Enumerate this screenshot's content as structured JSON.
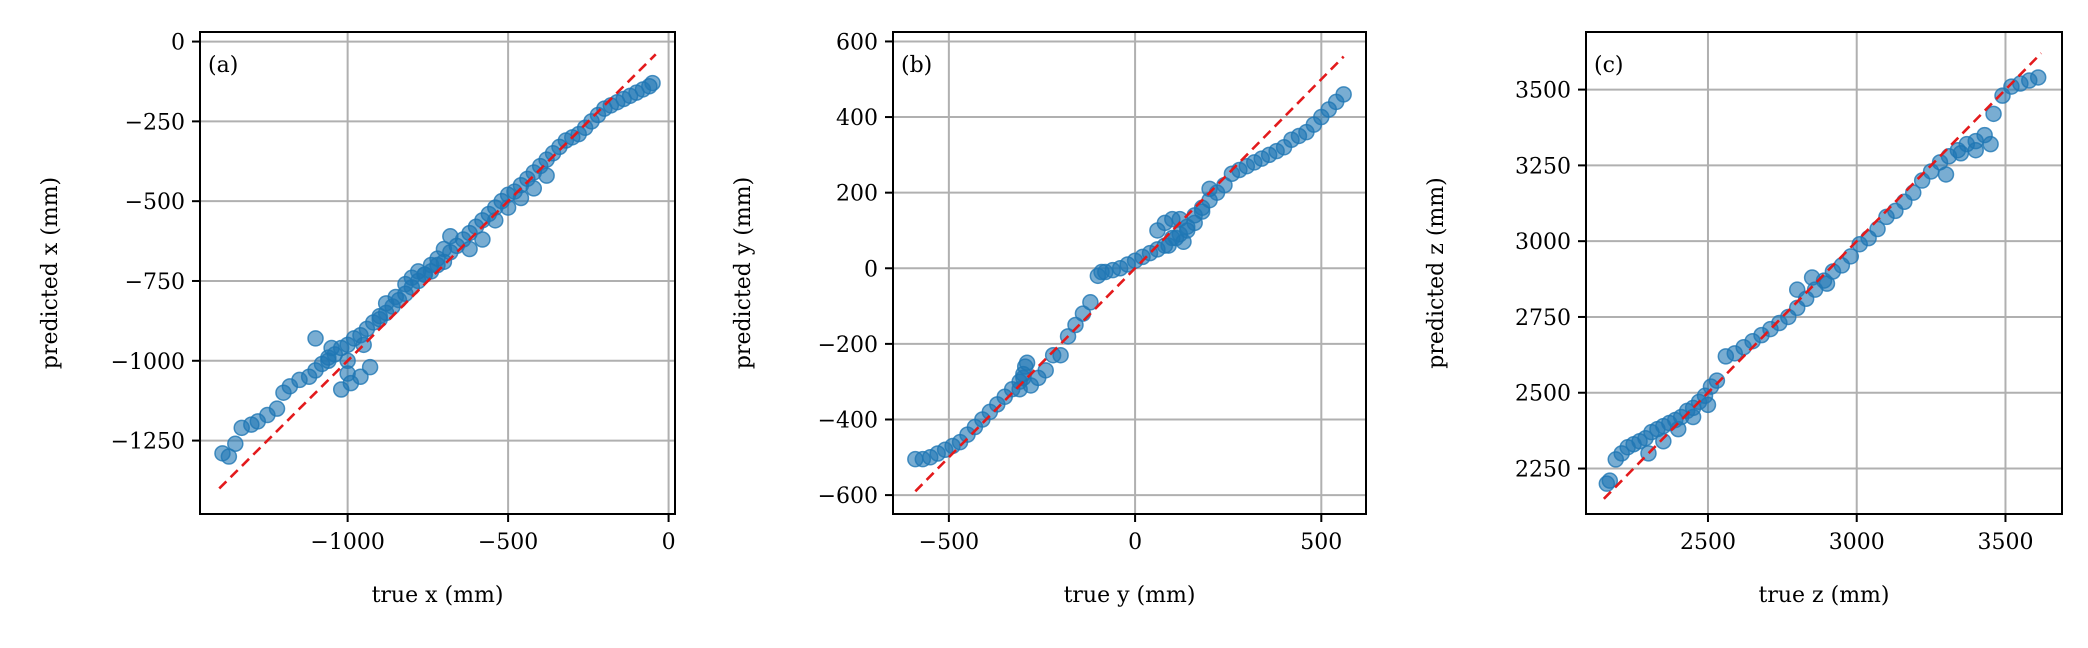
{
  "chart_data": [
    {
      "type": "scatter",
      "panel_label": "(a)",
      "xlabel": "true x (mm)",
      "ylabel": "predicted x (mm)",
      "xlim": [
        -1460,
        20
      ],
      "ylim": [
        -1480,
        30
      ],
      "xticks": [
        -1000,
        -500,
        0
      ],
      "xtick_labels": [
        "−1000",
        "−500",
        "0"
      ],
      "yticks": [
        0,
        -250,
        -500,
        -750,
        -1000,
        -1250
      ],
      "ytick_labels": [
        "0",
        "−250",
        "−500",
        "−750",
        "−1000",
        "−1250"
      ],
      "grid": true,
      "reference_line": {
        "x": [
          -1400,
          -40
        ],
        "y": [
          -1400,
          -40
        ],
        "color": "#e31a1c",
        "style": "dashed"
      },
      "point_color": "#1f77b4",
      "x": [
        -1390,
        -1370,
        -1350,
        -1330,
        -1300,
        -1280,
        -1250,
        -1220,
        -1200,
        -1180,
        -1150,
        -1120,
        -1100,
        -1080,
        -1060,
        -1040,
        -1020,
        -1000,
        -980,
        -960,
        -940,
        -920,
        -900,
        -880,
        -860,
        -840,
        -820,
        -800,
        -780,
        -760,
        -740,
        -720,
        -700,
        -680,
        -660,
        -640,
        -620,
        -600,
        -580,
        -560,
        -540,
        -520,
        -500,
        -480,
        -460,
        -440,
        -420,
        -400,
        -380,
        -360,
        -340,
        -320,
        -300,
        -280,
        -260,
        -240,
        -220,
        -200,
        -180,
        -160,
        -140,
        -120,
        -100,
        -80,
        -60,
        -50,
        -1100,
        -1050,
        -1000,
        -950,
        -900,
        -880,
        -850,
        -820,
        -800,
        -780,
        -760,
        -740,
        -720,
        -700,
        -680,
        -1020,
        -990,
        -960,
        -930,
        -1060,
        -1000,
        -620,
        -580,
        -540,
        -500,
        -460,
        -420,
        -380
      ],
      "y": [
        -1290,
        -1300,
        -1260,
        -1210,
        -1200,
        -1190,
        -1170,
        -1150,
        -1100,
        -1080,
        -1060,
        -1050,
        -1030,
        -1010,
        -990,
        -980,
        -960,
        -950,
        -930,
        -920,
        -900,
        -880,
        -860,
        -850,
        -830,
        -810,
        -790,
        -770,
        -750,
        -730,
        -720,
        -700,
        -690,
        -660,
        -640,
        -620,
        -600,
        -580,
        -560,
        -540,
        -520,
        -500,
        -480,
        -470,
        -450,
        -430,
        -410,
        -390,
        -370,
        -350,
        -330,
        -310,
        -300,
        -290,
        -270,
        -250,
        -230,
        -210,
        -200,
        -190,
        -180,
        -170,
        -160,
        -150,
        -140,
        -130,
        -930,
        -960,
        -1000,
        -950,
        -870,
        -820,
        -800,
        -760,
        -740,
        -720,
        -730,
        -700,
        -680,
        -650,
        -610,
        -1090,
        -1070,
        -1050,
        -1020,
        -1000,
        -1040,
        -650,
        -620,
        -560,
        -520,
        -490,
        -460,
        -420
      ]
    },
    {
      "type": "scatter",
      "panel_label": "(b)",
      "xlabel": "true y (mm)",
      "ylabel": "predicted y (mm)",
      "xlim": [
        -650,
        620
      ],
      "ylim": [
        -650,
        625
      ],
      "xticks": [
        -500,
        0,
        500
      ],
      "xtick_labels": [
        "−500",
        "0",
        "500"
      ],
      "yticks": [
        600,
        400,
        200,
        0,
        -200,
        -400,
        -600
      ],
      "ytick_labels": [
        "600",
        "400",
        "200",
        "0",
        "−200",
        "−400",
        "−600"
      ],
      "grid": true,
      "reference_line": {
        "x": [
          -590,
          560
        ],
        "y": [
          -590,
          560
        ],
        "color": "#e31a1c",
        "style": "dashed"
      },
      "point_color": "#1f77b4",
      "x": [
        -590,
        -570,
        -550,
        -530,
        -510,
        -490,
        -470,
        -450,
        -430,
        -410,
        -390,
        -370,
        -350,
        -330,
        -310,
        -300,
        -295,
        -290,
        -280,
        -260,
        -240,
        -220,
        -200,
        -180,
        -160,
        -140,
        -120,
        -100,
        -90,
        -80,
        -60,
        -40,
        -20,
        0,
        20,
        40,
        60,
        80,
        100,
        120,
        140,
        160,
        180,
        200,
        220,
        240,
        260,
        280,
        300,
        320,
        340,
        360,
        380,
        400,
        420,
        440,
        460,
        480,
        500,
        520,
        540,
        560,
        60,
        80,
        100,
        120,
        140,
        160,
        180,
        200,
        -300,
        -310,
        90,
        110,
        130
      ],
      "y": [
        -505,
        -505,
        -500,
        -490,
        -480,
        -470,
        -460,
        -440,
        -420,
        -400,
        -380,
        -360,
        -340,
        -320,
        -300,
        -290,
        -260,
        -250,
        -310,
        -290,
        -270,
        -230,
        -230,
        -180,
        -150,
        -120,
        -90,
        -20,
        -10,
        -10,
        -5,
        0,
        10,
        20,
        30,
        40,
        50,
        60,
        80,
        90,
        100,
        120,
        150,
        180,
        200,
        220,
        250,
        260,
        270,
        280,
        290,
        300,
        310,
        320,
        340,
        350,
        360,
        380,
        400,
        420,
        440,
        460,
        100,
        120,
        130,
        130,
        110,
        140,
        160,
        210,
        -280,
        -320,
        60,
        80,
        70
      ]
    },
    {
      "type": "scatter",
      "panel_label": "(c)",
      "xlabel": "true z (mm)",
      "ylabel": "predicted z (mm)",
      "xlim": [
        2090,
        3690
      ],
      "ylim": [
        2100,
        3690
      ],
      "xticks": [
        2500,
        3000,
        3500
      ],
      "xtick_labels": [
        "2500",
        "3000",
        "3500"
      ],
      "yticks": [
        3500,
        3250,
        3000,
        2750,
        2500,
        2250
      ],
      "ytick_labels": [
        "3500",
        "3250",
        "3000",
        "2750",
        "2500",
        "2250"
      ],
      "grid": true,
      "reference_line": {
        "x": [
          2150,
          3620
        ],
        "y": [
          2150,
          3620
        ],
        "color": "#e31a1c",
        "style": "dashed"
      },
      "point_color": "#1f77b4",
      "x": [
        2160,
        2170,
        2190,
        2210,
        2230,
        2250,
        2270,
        2290,
        2310,
        2330,
        2350,
        2370,
        2390,
        2410,
        2430,
        2450,
        2470,
        2490,
        2510,
        2530,
        2560,
        2590,
        2620,
        2650,
        2680,
        2710,
        2740,
        2770,
        2800,
        2830,
        2860,
        2890,
        2920,
        2950,
        2980,
        3010,
        3040,
        3070,
        3100,
        3130,
        3160,
        3190,
        3220,
        3250,
        3280,
        3310,
        3340,
        3370,
        3400,
        3430,
        3460,
        3490,
        3520,
        3550,
        3580,
        3610,
        2400,
        2450,
        2500,
        2350,
        2300,
        3300,
        3350,
        3400,
        3450,
        2800,
        2850,
        2900
      ],
      "y": [
        2200,
        2210,
        2280,
        2300,
        2320,
        2330,
        2340,
        2350,
        2370,
        2380,
        2390,
        2400,
        2410,
        2420,
        2440,
        2450,
        2470,
        2490,
        2520,
        2540,
        2620,
        2630,
        2650,
        2670,
        2690,
        2710,
        2730,
        2750,
        2780,
        2810,
        2840,
        2870,
        2900,
        2920,
        2950,
        2990,
        3010,
        3040,
        3080,
        3100,
        3130,
        3160,
        3200,
        3230,
        3260,
        3280,
        3300,
        3320,
        3330,
        3350,
        3420,
        3480,
        3510,
        3520,
        3530,
        3540,
        2380,
        2420,
        2460,
        2340,
        2300,
        3220,
        3290,
        3300,
        3320,
        2840,
        2880,
        2860
      ]
    }
  ]
}
